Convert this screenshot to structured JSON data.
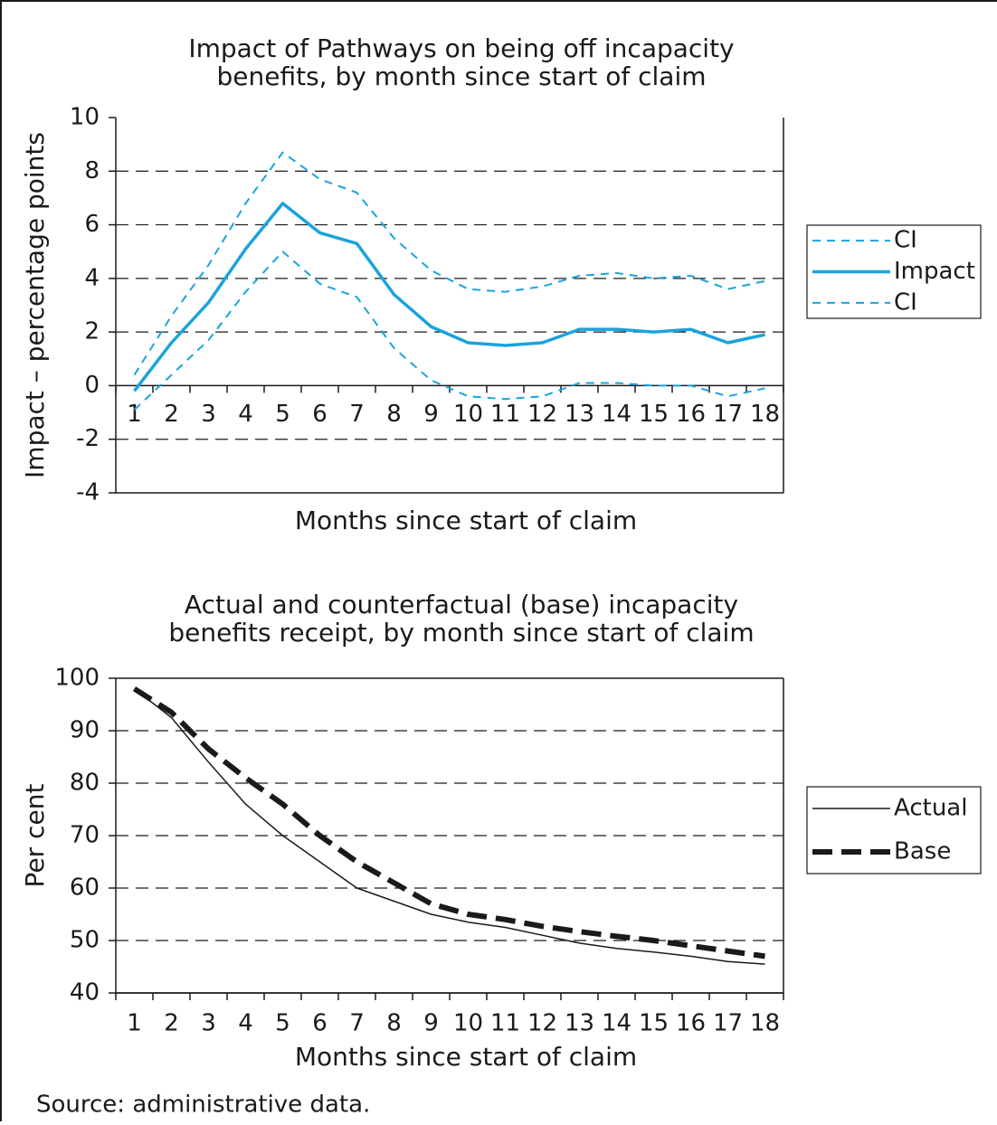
{
  "chart_data": [
    {
      "type": "line",
      "title": [
        "Impact of Pathways on being off incapacity",
        "benefits, by month since start of claim"
      ],
      "x_label": "Months since start of claim",
      "y_label": "Impact – percentage points",
      "categories": [
        "1",
        "2",
        "3",
        "4",
        "5",
        "6",
        "7",
        "8",
        "9",
        "10",
        "11",
        "12",
        "13",
        "14",
        "15",
        "16",
        "17",
        "18"
      ],
      "series": [
        {
          "name": "CI",
          "color": "#1aa3dc",
          "dash": "dashed",
          "width": 2,
          "values": [
            0.4,
            2.6,
            4.5,
            6.8,
            8.7,
            7.7,
            7.2,
            5.5,
            4.3,
            3.6,
            3.5,
            3.7,
            4.1,
            4.2,
            4.0,
            4.1,
            3.6,
            3.9
          ]
        },
        {
          "name": "Impact",
          "color": "#1aa3dc",
          "dash": "solid",
          "width": 3.5,
          "values": [
            -0.2,
            1.6,
            3.1,
            5.1,
            6.8,
            5.7,
            5.3,
            3.4,
            2.2,
            1.6,
            1.5,
            1.6,
            2.1,
            2.1,
            2.0,
            2.1,
            1.6,
            1.9
          ]
        },
        {
          "name": "CI",
          "color": "#1aa3dc",
          "dash": "dashed",
          "width": 2,
          "values": [
            -0.9,
            0.4,
            1.7,
            3.5,
            5.0,
            3.8,
            3.3,
            1.4,
            0.2,
            -0.4,
            -0.5,
            -0.4,
            0.1,
            0.1,
            0.0,
            0.0,
            -0.4,
            -0.1
          ]
        }
      ],
      "ylim": [
        -4,
        10
      ],
      "yticks": [
        -4,
        -2,
        0,
        2,
        4,
        6,
        8,
        10
      ],
      "grid": true,
      "legend": "right"
    },
    {
      "type": "line",
      "title": [
        "Actual and counterfactual (base) incapacity",
        "benefits receipt, by month since start of claim"
      ],
      "x_label": "Months since start of claim",
      "y_label": "Per cent",
      "categories": [
        "1",
        "2",
        "3",
        "4",
        "5",
        "6",
        "7",
        "8",
        "9",
        "10",
        "11",
        "12",
        "13",
        "14",
        "15",
        "16",
        "17",
        "18"
      ],
      "series": [
        {
          "name": "Actual",
          "color": "#1a1a1a",
          "dash": "solid",
          "width": 1.5,
          "values": [
            98,
            92.5,
            84,
            76,
            70,
            65,
            60,
            57.5,
            55,
            53.5,
            52.5,
            51,
            49.5,
            48.5,
            47.8,
            47,
            46,
            45.5
          ]
        },
        {
          "name": "Base",
          "color": "#1a1a1a",
          "dash": "dashed",
          "width": 6,
          "values": [
            98,
            93.5,
            86.5,
            81,
            76,
            70,
            65,
            61,
            57,
            55,
            54,
            52.7,
            51.7,
            50.8,
            50,
            49,
            48,
            47
          ]
        }
      ],
      "ylim": [
        40,
        100
      ],
      "yticks": [
        40,
        50,
        60,
        70,
        80,
        90,
        100
      ],
      "grid": true,
      "legend": "right"
    }
  ],
  "source": "Source: administrative data."
}
